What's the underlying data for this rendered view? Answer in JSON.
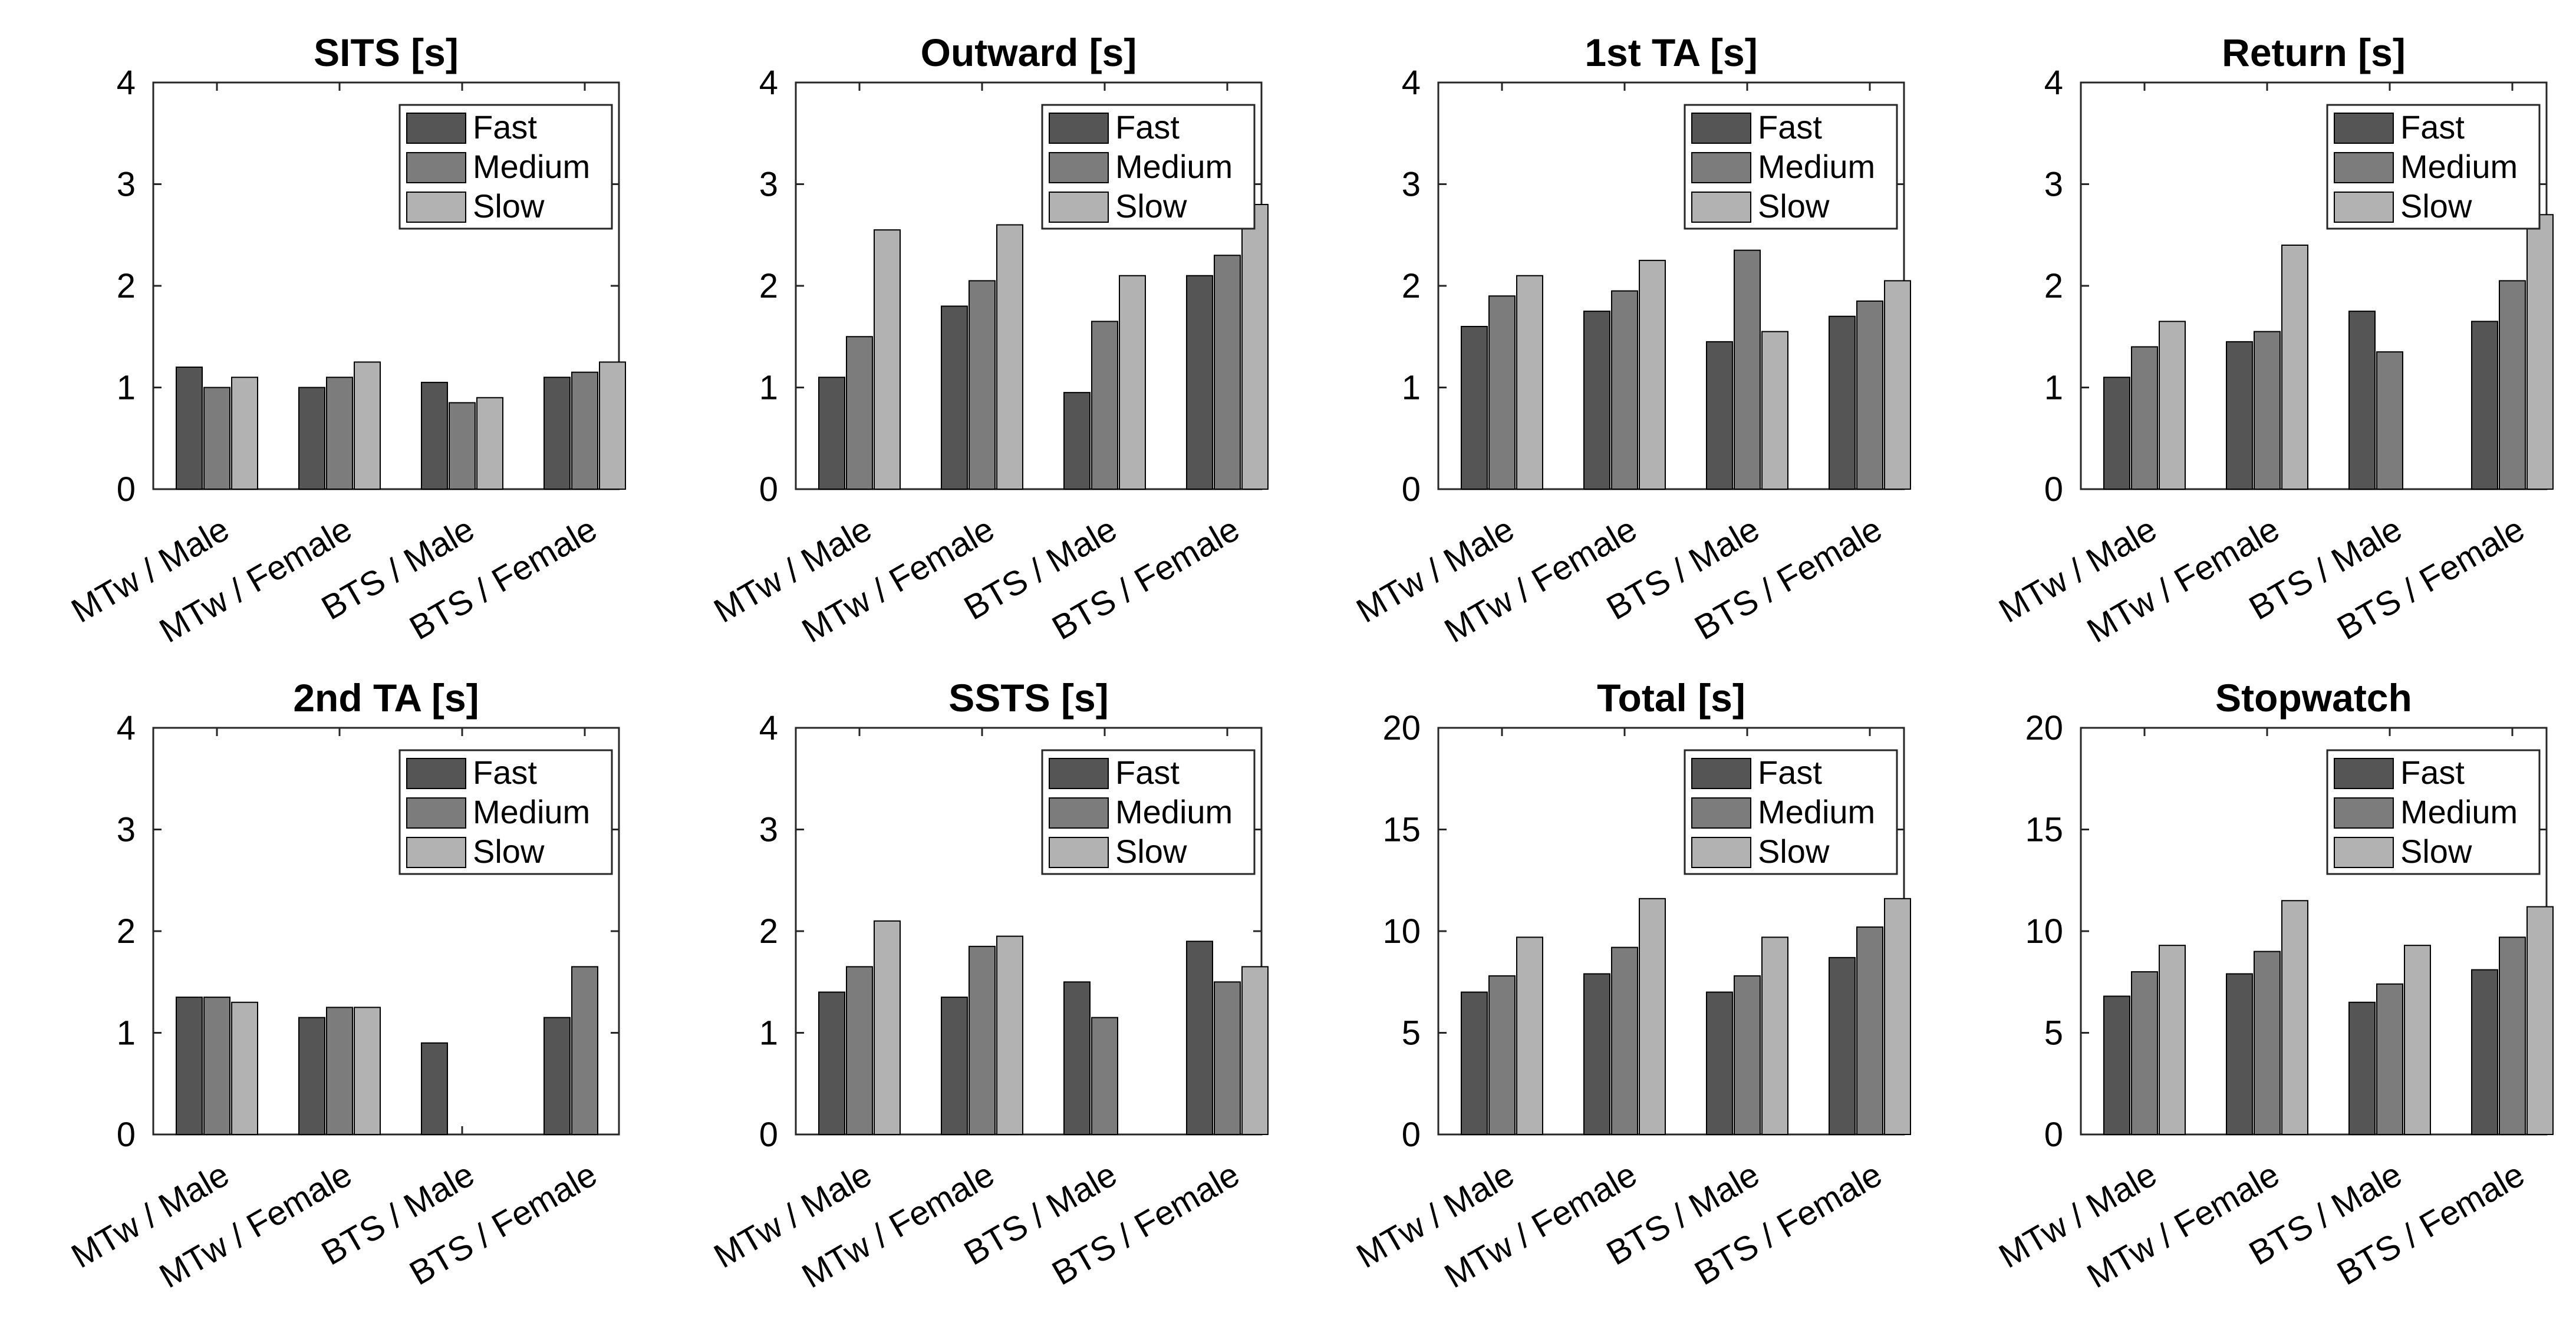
{
  "chart_data": [
    {
      "type": "bar",
      "title": "SITS [s]",
      "categories": [
        "MTw / Male",
        "MTw / Female",
        "BTS / Male",
        "BTS / Female"
      ],
      "series": [
        {
          "name": "Fast",
          "values": [
            1.2,
            1.0,
            1.05,
            1.1
          ]
        },
        {
          "name": "Medium",
          "values": [
            1.0,
            1.1,
            0.85,
            1.15
          ]
        },
        {
          "name": "Slow",
          "values": [
            1.1,
            1.25,
            0.9,
            1.25
          ]
        }
      ],
      "ylim": [
        0,
        4
      ],
      "yticks": [
        0,
        1,
        2,
        3,
        4
      ],
      "xlabel": "",
      "ylabel": "",
      "legend": "top-right"
    },
    {
      "type": "bar",
      "title": "Outward [s]",
      "categories": [
        "MTw / Male",
        "MTw / Female",
        "BTS / Male",
        "BTS / Female"
      ],
      "series": [
        {
          "name": "Fast",
          "values": [
            1.1,
            1.8,
            0.95,
            2.1
          ]
        },
        {
          "name": "Medium",
          "values": [
            1.5,
            2.05,
            1.65,
            2.3
          ]
        },
        {
          "name": "Slow",
          "values": [
            2.55,
            2.6,
            2.1,
            2.8
          ]
        }
      ],
      "ylim": [
        0,
        4
      ],
      "yticks": [
        0,
        1,
        2,
        3,
        4
      ],
      "xlabel": "",
      "ylabel": "",
      "legend": "top-right"
    },
    {
      "type": "bar",
      "title": "1st TA [s]",
      "categories": [
        "MTw / Male",
        "MTw / Female",
        "BTS / Male",
        "BTS / Female"
      ],
      "series": [
        {
          "name": "Fast",
          "values": [
            1.6,
            1.75,
            1.45,
            1.7
          ]
        },
        {
          "name": "Medium",
          "values": [
            1.9,
            1.95,
            2.35,
            1.85
          ]
        },
        {
          "name": "Slow",
          "values": [
            2.1,
            2.25,
            1.55,
            2.05
          ]
        }
      ],
      "ylim": [
        0,
        4
      ],
      "yticks": [
        0,
        1,
        2,
        3,
        4
      ],
      "xlabel": "",
      "ylabel": "",
      "legend": "top-right"
    },
    {
      "type": "bar",
      "title": "Return [s]",
      "categories": [
        "MTw / Male",
        "MTw / Female",
        "BTS / Male",
        "BTS / Female"
      ],
      "series": [
        {
          "name": "Fast",
          "values": [
            1.1,
            1.45,
            1.75,
            1.65
          ]
        },
        {
          "name": "Medium",
          "values": [
            1.4,
            1.55,
            1.35,
            2.05
          ]
        },
        {
          "name": "Slow",
          "values": [
            1.65,
            2.4,
            0,
            2.7
          ]
        }
      ],
      "ylim": [
        0,
        4
      ],
      "yticks": [
        0,
        1,
        2,
        3,
        4
      ],
      "xlabel": "",
      "ylabel": "",
      "legend": "top-right"
    },
    {
      "type": "bar",
      "title": "2nd TA [s]",
      "categories": [
        "MTw / Male",
        "MTw / Female",
        "BTS / Male",
        "BTS / Female"
      ],
      "series": [
        {
          "name": "Fast",
          "values": [
            1.35,
            1.15,
            0.9,
            1.15
          ]
        },
        {
          "name": "Medium",
          "values": [
            1.35,
            1.25,
            0,
            1.65
          ]
        },
        {
          "name": "Slow",
          "values": [
            1.3,
            1.25,
            0,
            0
          ]
        }
      ],
      "ylim": [
        0,
        4
      ],
      "yticks": [
        0,
        1,
        2,
        3,
        4
      ],
      "xlabel": "",
      "ylabel": "",
      "legend": "top-right"
    },
    {
      "type": "bar",
      "title": "SSTS [s]",
      "categories": [
        "MTw / Male",
        "MTw / Female",
        "BTS / Male",
        "BTS / Female"
      ],
      "series": [
        {
          "name": "Fast",
          "values": [
            1.4,
            1.35,
            1.5,
            1.9
          ]
        },
        {
          "name": "Medium",
          "values": [
            1.65,
            1.85,
            1.15,
            1.5
          ]
        },
        {
          "name": "Slow",
          "values": [
            2.1,
            1.95,
            0,
            1.65
          ]
        }
      ],
      "ylim": [
        0,
        4
      ],
      "yticks": [
        0,
        1,
        2,
        3,
        4
      ],
      "xlabel": "",
      "ylabel": "",
      "legend": "top-right"
    },
    {
      "type": "bar",
      "title": "Total [s]",
      "categories": [
        "MTw / Male",
        "MTw / Female",
        "BTS / Male",
        "BTS / Female"
      ],
      "series": [
        {
          "name": "Fast",
          "values": [
            7.0,
            7.9,
            7.0,
            8.7
          ]
        },
        {
          "name": "Medium",
          "values": [
            7.8,
            9.2,
            7.8,
            10.2
          ]
        },
        {
          "name": "Slow",
          "values": [
            9.7,
            11.6,
            9.7,
            11.6
          ]
        }
      ],
      "ylim": [
        0,
        20
      ],
      "yticks": [
        0,
        5,
        10,
        15,
        20
      ],
      "xlabel": "",
      "ylabel": "",
      "legend": "top-right"
    },
    {
      "type": "bar",
      "title": "Stopwatch",
      "categories": [
        "MTw / Male",
        "MTw / Female",
        "BTS / Male",
        "BTS / Female"
      ],
      "series": [
        {
          "name": "Fast",
          "values": [
            6.8,
            7.9,
            6.5,
            8.1
          ]
        },
        {
          "name": "Medium",
          "values": [
            8.0,
            9.0,
            7.4,
            9.7
          ]
        },
        {
          "name": "Slow",
          "values": [
            9.3,
            11.5,
            9.3,
            11.2
          ]
        }
      ],
      "ylim": [
        0,
        20
      ],
      "yticks": [
        0,
        5,
        10,
        15,
        20
      ],
      "xlabel": "",
      "ylabel": "",
      "legend": "top-right"
    }
  ],
  "colors": {
    "Fast": "#555555",
    "Medium": "#7c7c7c",
    "Slow": "#b2b2b2",
    "axis": "#262626",
    "background": "#ffffff"
  }
}
